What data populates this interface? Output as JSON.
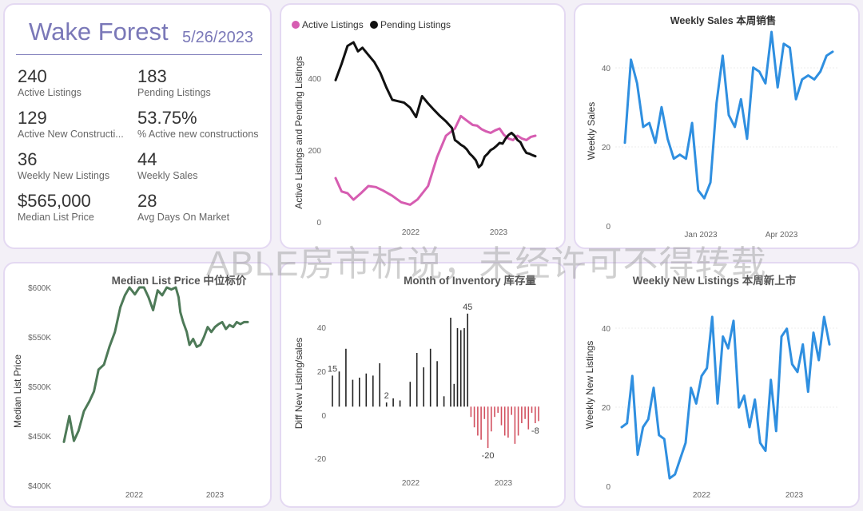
{
  "kpi_card": {
    "title": "Wake Forest",
    "date": "5/26/2023",
    "metrics": [
      {
        "value": "240",
        "label": "Active Listings"
      },
      {
        "value": "183",
        "label": "Pending Listings"
      },
      {
        "value": "129",
        "label": "Active New Constructi..."
      },
      {
        "value": "53.75%",
        "label": "% Active new constructions"
      },
      {
        "value": "36",
        "label": "Weekly New Listings"
      },
      {
        "value": "44",
        "label": "Weekly Sales"
      },
      {
        "value": "$565,000",
        "label": "Median List Price"
      },
      {
        "value": "28",
        "label": "Avg Days On Market"
      }
    ]
  },
  "watermark": "ABLE房市析说，未经许可不得转载",
  "colors": {
    "active": "#d65db1",
    "pending": "#111111",
    "blue": "#2f8fe0",
    "green": "#4e7a58",
    "neg": "#d2505f",
    "bar": "#222222"
  },
  "chart_data": [
    {
      "type": "line",
      "id": "listings",
      "title": "",
      "ylabel": "Active Listings and Pending Listings",
      "xlabel": "",
      "legend": "top-left",
      "ylim": [
        0,
        500
      ],
      "yticks": [
        "0",
        "200",
        "400"
      ],
      "xticks": [
        "2022",
        "2023"
      ],
      "series": [
        {
          "name": "Active Listings",
          "color": "#d65db1",
          "x": [
            0,
            4,
            8,
            12,
            17,
            22,
            27,
            32,
            38,
            44,
            50,
            55,
            62,
            68,
            74,
            80,
            84,
            88,
            92,
            95,
            98,
            101,
            104,
            107,
            110,
            113,
            116,
            119,
            122,
            125,
            128,
            131,
            134
          ],
          "values": [
            122,
            85,
            80,
            62,
            80,
            100,
            97,
            87,
            73,
            55,
            48,
            63,
            100,
            180,
            240,
            260,
            295,
            282,
            270,
            268,
            258,
            252,
            248,
            255,
            260,
            242,
            232,
            228,
            240,
            232,
            228,
            237,
            240
          ]
        },
        {
          "name": "Pending Listings",
          "color": "#111111",
          "x": [
            0,
            4,
            8,
            12,
            15,
            18,
            22,
            26,
            30,
            34,
            38,
            42,
            46,
            50,
            54,
            58,
            62,
            66,
            70,
            74,
            78,
            80,
            82,
            84,
            86,
            88,
            90,
            92,
            94,
            96,
            98,
            100,
            102,
            104,
            106,
            108,
            110,
            112,
            114,
            116,
            118,
            120,
            122,
            124,
            126,
            128,
            130,
            132,
            134
          ],
          "values": [
            395,
            440,
            490,
            500,
            475,
            485,
            465,
            445,
            415,
            375,
            340,
            336,
            332,
            318,
            292,
            350,
            330,
            312,
            295,
            280,
            262,
            228,
            222,
            215,
            210,
            202,
            190,
            182,
            172,
            152,
            160,
            182,
            190,
            200,
            205,
            212,
            220,
            218,
            232,
            242,
            248,
            240,
            228,
            222,
            205,
            192,
            190,
            186,
            183
          ]
        }
      ]
    },
    {
      "type": "line",
      "id": "sales",
      "title": "Weekly Sales 本周销售",
      "ylabel": "Weekly Sales",
      "xlabel": "",
      "ylim": [
        0,
        50
      ],
      "yticks": [
        "0",
        "20",
        "40"
      ],
      "xticks": [
        "Jan 2023",
        "Apr 2023"
      ],
      "series": [
        {
          "name": "",
          "color": "#2f8fe0",
          "values": [
            21,
            42,
            36,
            25,
            26,
            21,
            30,
            22,
            17,
            18,
            17,
            26,
            9,
            7,
            11,
            31,
            43,
            28,
            25,
            32,
            22,
            40,
            39,
            36,
            49,
            35,
            46,
            45,
            32,
            37,
            38,
            37,
            39,
            43,
            44
          ]
        }
      ]
    },
    {
      "type": "line",
      "id": "price",
      "title": "Median List Price  中位标价",
      "ylabel": "Median List Price",
      "xlabel": "",
      "ylim": [
        400,
        600
      ],
      "yticks": [
        "$400K",
        "$450K",
        "$500K",
        "$550K",
        "$600K"
      ],
      "xticks": [
        "2022",
        "2023"
      ],
      "series": [
        {
          "name": "",
          "color": "#4e7a58",
          "x": [
            0,
            6,
            11,
            16,
            22,
            28,
            33,
            38,
            44,
            50,
            56,
            62,
            67,
            72,
            78,
            83,
            88,
            93,
            98,
            103,
            108,
            113,
            118,
            123,
            126,
            128,
            131,
            135,
            138,
            142,
            146,
            150,
            154,
            158,
            162,
            166,
            170,
            174,
            178,
            182,
            186,
            190,
            194,
            198,
            202
          ],
          "values": [
            444,
            470,
            445,
            455,
            475,
            485,
            495,
            517,
            522,
            540,
            555,
            580,
            592,
            600,
            593,
            600,
            600,
            590,
            577,
            597,
            592,
            600,
            598,
            600,
            590,
            575,
            565,
            555,
            542,
            548,
            540,
            542,
            550,
            560,
            555,
            560,
            563,
            565,
            558,
            562,
            560,
            565,
            563,
            565,
            565
          ]
        }
      ]
    },
    {
      "type": "bar",
      "id": "inventory",
      "title": "Month of Inventory 库存量",
      "ylabel": "Diff New Listing/sales",
      "xlabel": "",
      "ylim": [
        -25,
        48
      ],
      "yticks": [
        "-20",
        "0",
        "20",
        "40"
      ],
      "xticks": [
        "2022",
        "2023"
      ],
      "labels": [
        {
          "text": "45",
          "x": 40,
          "value": 45
        },
        {
          "text": "15",
          "x": 0,
          "value": 15
        },
        {
          "text": "2",
          "x": 16,
          "value": 2
        },
        {
          "text": "-20",
          "x": 46,
          "value": -20
        },
        {
          "text": "-8",
          "x": 60,
          "value": -8
        }
      ],
      "x": [
        0,
        2,
        4,
        6,
        8,
        10,
        12,
        14,
        16,
        18,
        20,
        23,
        25,
        27,
        29,
        31,
        33,
        35,
        36,
        37,
        38,
        39,
        40,
        41,
        42,
        43,
        44,
        45,
        46,
        47,
        48,
        49,
        50,
        51,
        52,
        53,
        54,
        55,
        56,
        57,
        58,
        59,
        60,
        61
      ],
      "values": [
        15,
        17,
        28,
        13,
        14,
        16,
        15,
        21,
        2,
        4,
        3,
        12,
        26,
        19,
        28,
        22,
        5,
        43,
        11,
        38,
        37,
        38,
        45,
        -5,
        -10,
        -14,
        -16,
        -6,
        -20,
        -12,
        -5,
        -3,
        -9,
        -14,
        -15,
        -4,
        -18,
        -14,
        -8,
        -6,
        -11,
        -3,
        -8,
        -7
      ]
    },
    {
      "type": "line",
      "id": "newlistings",
      "title": "Weekly New Listings  本周新上市",
      "ylabel": "Weekly New Listings",
      "xlabel": "",
      "ylim": [
        0,
        45
      ],
      "yticks": [
        "0",
        "20",
        "40"
      ],
      "xticks": [
        "2022",
        "2023"
      ],
      "series": [
        {
          "name": "",
          "color": "#2f8fe0",
          "values": [
            15,
            16,
            28,
            8,
            15,
            17,
            25,
            13,
            12,
            2,
            3,
            7,
            11,
            25,
            21,
            28,
            30,
            43,
            21,
            38,
            35,
            42,
            20,
            23,
            15,
            22,
            11,
            9,
            27,
            14,
            38,
            40,
            31,
            29,
            36,
            24,
            39,
            32,
            43,
            36
          ]
        }
      ]
    }
  ]
}
